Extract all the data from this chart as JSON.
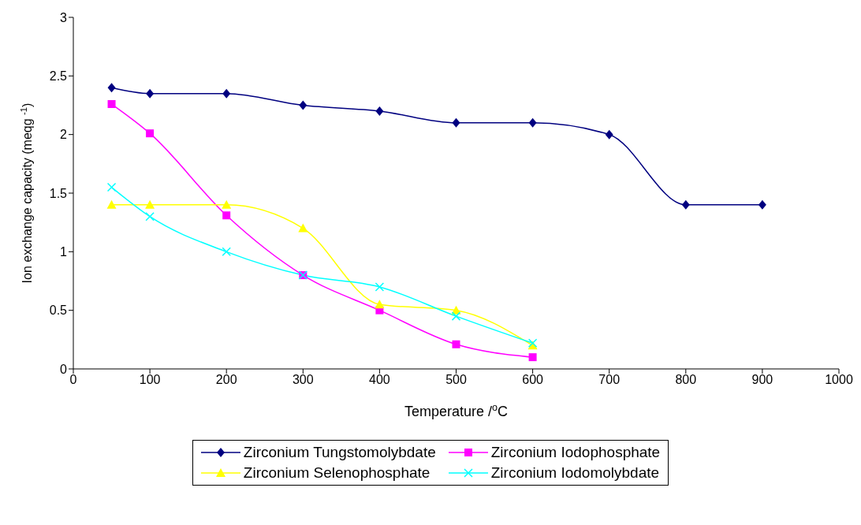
{
  "chart_data": {
    "type": "line",
    "xlabel": "Temperature /$^{o}$C",
    "ylabel": "Ion exchange capacity (meqg $^{-1}$)",
    "xlim": [
      0,
      1000
    ],
    "xticks": [
      0,
      100,
      200,
      300,
      400,
      500,
      600,
      700,
      800,
      900,
      1000
    ],
    "ylim": [
      0,
      3
    ],
    "yticks": [
      0,
      0.5,
      1,
      1.5,
      2,
      2.5,
      3
    ],
    "grid": false,
    "legend": "bottom",
    "series": [
      {
        "name": "Zirconium Tungstomolybdate",
        "color": "#000080",
        "marker": "diamond",
        "x": [
          50,
          100,
          200,
          300,
          400,
          500,
          600,
          700,
          800,
          900
        ],
        "values": [
          2.4,
          2.35,
          2.35,
          2.25,
          2.2,
          2.1,
          2.1,
          2.0,
          1.4,
          1.4
        ]
      },
      {
        "name": "Zirconium Iodophosphate",
        "color": "#ff00ff",
        "marker": "square",
        "x": [
          50,
          100,
          200,
          300,
          400,
          500,
          600
        ],
        "values": [
          2.26,
          2.01,
          1.31,
          0.8,
          0.5,
          0.21,
          0.1
        ]
      },
      {
        "name": "Zirconium Selenophosphate",
        "color": "#ffff00",
        "marker": "triangle",
        "x": [
          50,
          100,
          200,
          300,
          400,
          500,
          600
        ],
        "values": [
          1.4,
          1.4,
          1.4,
          1.2,
          0.55,
          0.5,
          0.2
        ]
      },
      {
        "name": "Zirconium Iodomolybdate",
        "color": "#00ffff",
        "marker": "cross",
        "x": [
          50,
          100,
          200,
          300,
          400,
          500,
          600
        ],
        "values": [
          1.55,
          1.3,
          1.0,
          0.8,
          0.7,
          0.45,
          0.22
        ]
      }
    ]
  }
}
